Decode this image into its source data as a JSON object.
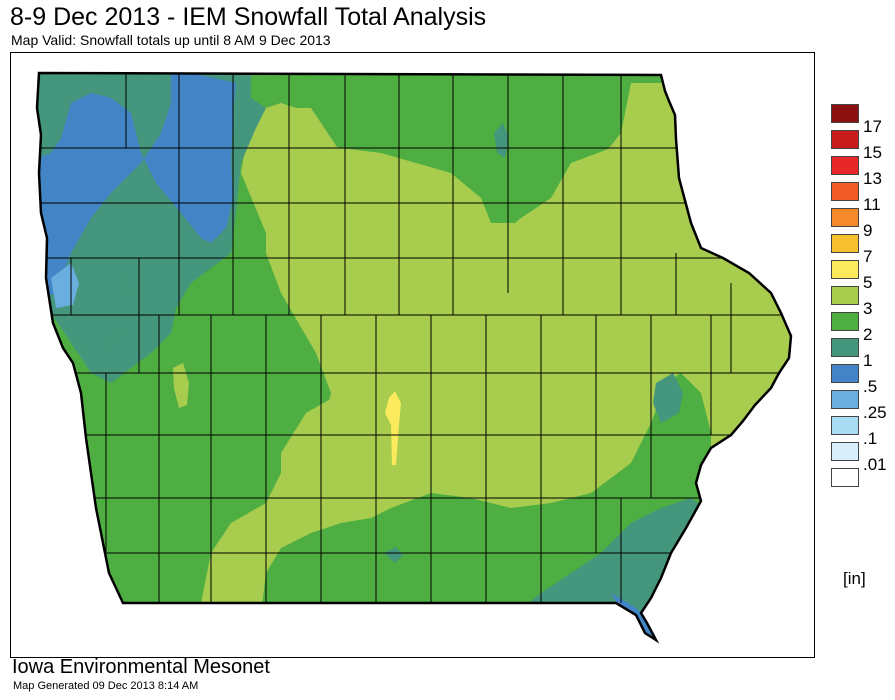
{
  "header": {
    "title": "8-9 Dec 2013 - IEM Snowfall Total Analysis",
    "subtitle": "Map Valid: Snowfall totals up until 8 AM 9 Dec 2013"
  },
  "legend": {
    "levels": [
      {
        "label": "17",
        "color": "#8b1010"
      },
      {
        "label": "15",
        "color": "#c81c1c"
      },
      {
        "label": "13",
        "color": "#e8272a"
      },
      {
        "label": "11",
        "color": "#f05a24"
      },
      {
        "label": "9",
        "color": "#f58a2a"
      },
      {
        "label": "7",
        "color": "#f7c02f"
      },
      {
        "label": "5",
        "color": "#faea5c"
      },
      {
        "label": "3",
        "color": "#a8cd4e"
      },
      {
        "label": "2",
        "color": "#4fae42"
      },
      {
        "label": "1",
        "color": "#44977c"
      },
      {
        "label": ".5",
        "color": "#4284c6"
      },
      {
        "label": ".25",
        "color": "#6aaee0"
      },
      {
        "label": ".1",
        "color": "#a9dbf3"
      },
      {
        "label": ".01",
        "color": "#d8eefb"
      },
      {
        "label": "",
        "color": "#ffffff"
      }
    ],
    "units": "[in]"
  },
  "footer": {
    "org": "Iowa Environmental Mesonet",
    "generated": "Map Generated 09 Dec 2013 8:14 AM"
  },
  "colors": {
    "county_lines": "#000000",
    "state_outline": "#000000"
  }
}
